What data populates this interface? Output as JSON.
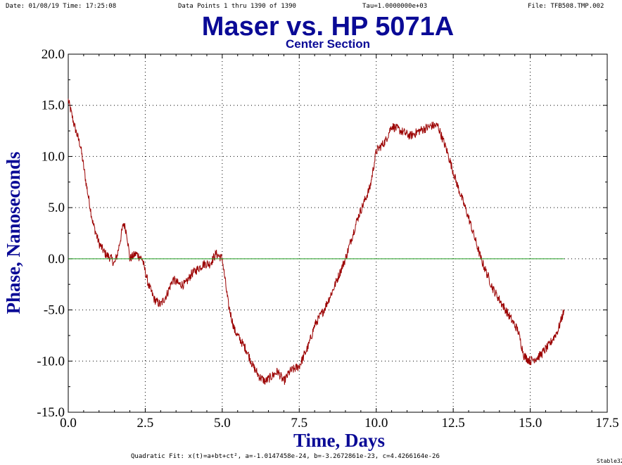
{
  "header": {
    "date": "Date: 01/08/19  Time: 17:25:08",
    "points": "Data Points 1 thru 1390 of 1390",
    "tau": "Tau=1.0000000e+03",
    "file": "File: TFB508.TMP.002"
  },
  "footer": {
    "fit": "Quadratic Fit: x(t)=a+bt+ct², a=-1.0147458e-24, b=-3.2672861e-23, c=4.4266164e-26",
    "brand": "Stable32"
  },
  "colors": {
    "title": "#0a0a96",
    "trace": "#9b0000",
    "zero_line": "#1f9a1f",
    "grid": "#000000"
  },
  "chart_data": {
    "type": "line",
    "title": "Maser vs. HP 5071A",
    "subtitle": "Center Section",
    "xlabel": "Time, Days",
    "ylabel": "Phase, Nanoseconds",
    "xlim": [
      0.0,
      17.5
    ],
    "ylim": [
      -15.0,
      20.0
    ],
    "x_ticks": [
      "0.0",
      "2.5",
      "5.0",
      "7.5",
      "10.0",
      "12.5",
      "15.0",
      "17.5"
    ],
    "y_ticks": [
      "20.0",
      "15.0",
      "10.0",
      "5.0",
      "0.0",
      "-5.0",
      "-10.0",
      "-15.0"
    ],
    "grid": true,
    "series": [
      {
        "name": "",
        "x": [
          0.0,
          0.2,
          0.4,
          0.6,
          0.8,
          1.0,
          1.2,
          1.4,
          1.5,
          1.6,
          1.8,
          1.9,
          2.0,
          2.2,
          2.4,
          2.6,
          2.8,
          3.0,
          3.2,
          3.4,
          3.6,
          3.8,
          4.0,
          4.2,
          4.4,
          4.6,
          4.8,
          5.0,
          5.2,
          5.4,
          5.6,
          5.8,
          6.0,
          6.2,
          6.4,
          6.6,
          6.8,
          7.0,
          7.2,
          7.5,
          7.8,
          8.0,
          8.3,
          8.6,
          9.0,
          9.4,
          9.8,
          10.0,
          10.3,
          10.5,
          10.8,
          11.1,
          11.4,
          11.8,
          12.0,
          12.3,
          12.6,
          13.0,
          13.4,
          13.8,
          14.2,
          14.6,
          14.8,
          15.0,
          15.3,
          15.6,
          15.9,
          16.1
        ],
        "y": [
          15.5,
          13.0,
          11.0,
          7.0,
          3.5,
          1.5,
          0.5,
          0.0,
          -0.5,
          0.5,
          3.5,
          2.5,
          0.0,
          0.5,
          0.0,
          -2.5,
          -4.0,
          -4.5,
          -3.5,
          -2.0,
          -2.5,
          -2.5,
          -1.5,
          -1.0,
          -0.5,
          -0.5,
          0.5,
          0.0,
          -4.5,
          -7.0,
          -8.0,
          -9.0,
          -10.5,
          -11.5,
          -12.0,
          -11.5,
          -11.0,
          -12.0,
          -11.0,
          -10.5,
          -8.5,
          -6.5,
          -5.0,
          -3.0,
          0.0,
          4.0,
          7.0,
          10.5,
          11.5,
          13.0,
          12.5,
          12.0,
          12.5,
          13.0,
          13.0,
          10.5,
          7.5,
          4.0,
          0.0,
          -3.0,
          -5.0,
          -7.0,
          -9.5,
          -10.0,
          -9.5,
          -8.5,
          -7.0,
          -5.0
        ]
      },
      {
        "name": "",
        "x": [
          0.0,
          16.1
        ],
        "y": [
          0.0,
          0.0
        ]
      }
    ]
  }
}
